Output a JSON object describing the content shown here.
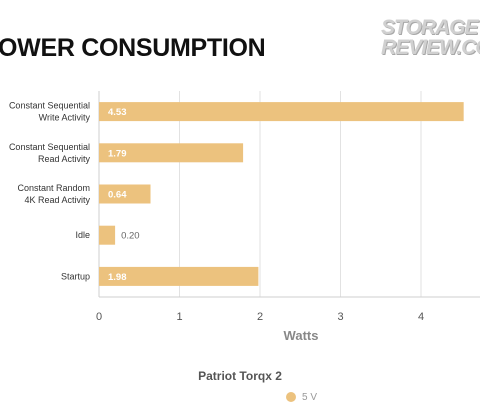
{
  "header": {
    "title": "OWER CONSUMPTION",
    "logo_line1": "STORAGE",
    "logo_line2": "REVIEW.CO"
  },
  "chart_data": {
    "type": "bar",
    "orientation": "horizontal",
    "title": "OWER CONSUMPTION",
    "categories": [
      [
        "Constant Sequential",
        "Write Activity"
      ],
      [
        "Constant Sequential",
        "Read Activity"
      ],
      [
        "Constant Random",
        "4K Read Activity"
      ],
      [
        "Idle"
      ],
      [
        "Startup"
      ]
    ],
    "series": [
      {
        "name": "5 V",
        "color": "#ecc27e",
        "values": [
          4.53,
          1.79,
          0.64,
          0.2,
          1.98
        ],
        "value_labels": [
          "4.53",
          "1.79",
          "0.64",
          "0.20",
          "1.98"
        ]
      }
    ],
    "xlabel": "Watts",
    "xlim": [
      0,
      4.6
    ],
    "xticks": [
      "0",
      "1",
      "2",
      "3",
      "4"
    ],
    "xtick_values": [
      0,
      1,
      2,
      3,
      4
    ],
    "grid": true,
    "legend": {
      "title": "Patriot Torqx 2",
      "placement": "bottom-center"
    }
  }
}
